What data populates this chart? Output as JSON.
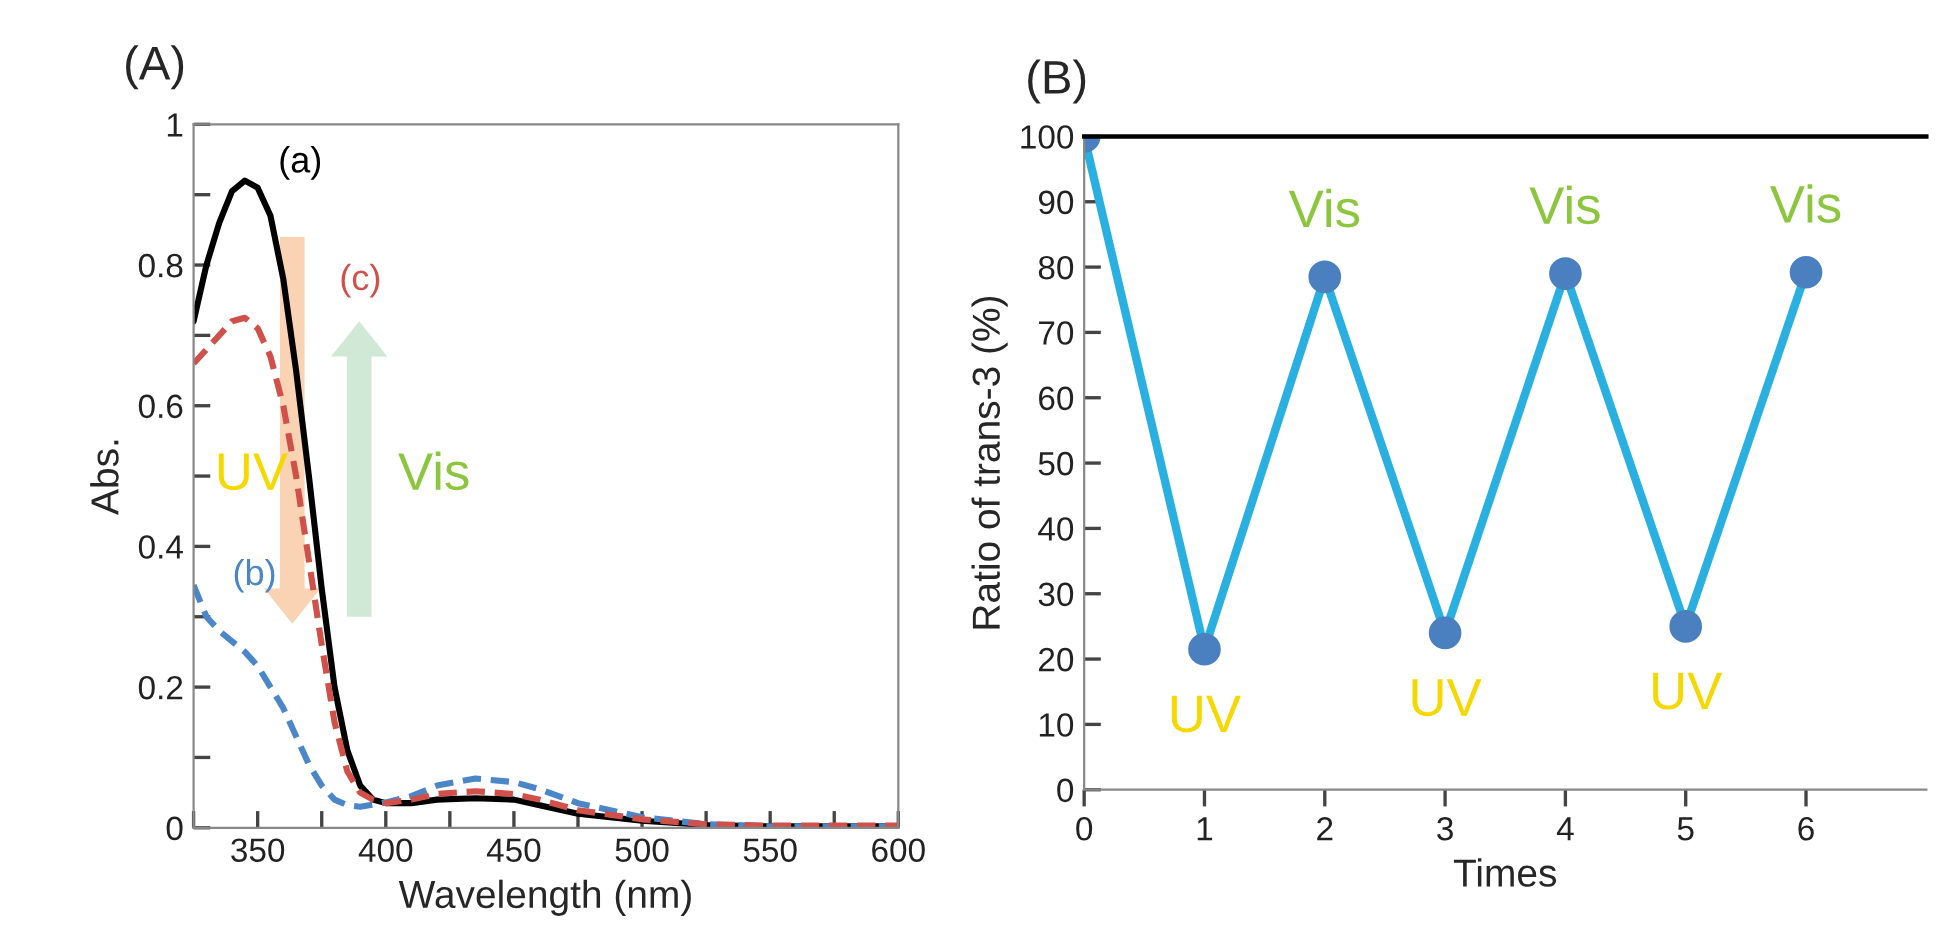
{
  "chart_data": [
    {
      "type": "line",
      "title": "(A)",
      "xlabel": "Wavelength (nm)",
      "ylabel": "Abs.",
      "xlim": [
        325,
        600
      ],
      "xticks": [
        {
          "value": 325,
          "label": null
        },
        350,
        {
          "value": 375,
          "label": null
        },
        400,
        {
          "value": 425,
          "label": null
        },
        450,
        {
          "value": 475,
          "label": null
        },
        500,
        {
          "value": 525,
          "label": null
        },
        550,
        {
          "value": 575,
          "label": null
        },
        600
      ],
      "ylim": [
        0,
        1
      ],
      "yticks": [
        0,
        {
          "value": 0.1,
          "label": null
        },
        0.2,
        {
          "value": 0.3,
          "label": null
        },
        0.4,
        {
          "value": 0.5,
          "label": null
        },
        0.6,
        {
          "value": 0.7,
          "label": null
        },
        0.8,
        {
          "value": 0.9,
          "label": null
        },
        1
      ],
      "x": [
        325,
        330,
        335,
        340,
        345,
        350,
        355,
        360,
        365,
        370,
        375,
        380,
        385,
        390,
        395,
        400,
        410,
        420,
        435,
        450,
        460,
        475,
        500,
        525,
        550,
        600
      ],
      "series": [
        {
          "name": "(a)",
          "color": "#000000",
          "line_style": "solid",
          "values": [
            0.72,
            0.8,
            0.86,
            0.905,
            0.92,
            0.91,
            0.87,
            0.78,
            0.65,
            0.5,
            0.34,
            0.2,
            0.11,
            0.06,
            0.04,
            0.035,
            0.035,
            0.04,
            0.042,
            0.04,
            0.032,
            0.02,
            0.01,
            0.004,
            0.002,
            0.002
          ]
        },
        {
          "name": "(b)",
          "color": "#4a86c8",
          "line_style": "dashed",
          "values": [
            0.345,
            0.3,
            0.28,
            0.265,
            0.25,
            0.23,
            0.2,
            0.17,
            0.13,
            0.09,
            0.06,
            0.04,
            0.032,
            0.03,
            0.033,
            0.036,
            0.045,
            0.06,
            0.07,
            0.065,
            0.055,
            0.035,
            0.015,
            0.005,
            0.002,
            0.002
          ]
        },
        {
          "name": "(c)",
          "color": "#d0504a",
          "line_style": "dashed",
          "values": [
            0.66,
            0.68,
            0.7,
            0.72,
            0.725,
            0.71,
            0.67,
            0.6,
            0.5,
            0.38,
            0.26,
            0.15,
            0.08,
            0.05,
            0.04,
            0.035,
            0.04,
            0.048,
            0.052,
            0.048,
            0.04,
            0.025,
            0.012,
            0.005,
            0.003,
            0.003
          ]
        }
      ],
      "annotations": [
        "UV",
        "Vis"
      ],
      "grid": false,
      "legend": false,
      "marker": "none"
    },
    {
      "type": "line",
      "title": "(B)",
      "xlabel": "Times",
      "ylabel": "Ratio of trans-3 (%)",
      "x": [
        0,
        1,
        2,
        3,
        4,
        5,
        6
      ],
      "xlim": [
        0,
        7
      ],
      "xticks": [
        0,
        1,
        2,
        3,
        4,
        5,
        6
      ],
      "ylim": [
        0,
        100
      ],
      "yticks": [
        0,
        10,
        20,
        30,
        40,
        50,
        60,
        70,
        80,
        90,
        100
      ],
      "series": [
        {
          "color": "#29b0e0",
          "values": [
            100,
            21.5,
            78.5,
            24,
            79,
            25,
            79.2
          ]
        }
      ],
      "annotations": [
        {
          "text": "UV",
          "x": 1,
          "y": 21.5
        },
        {
          "text": "Vis",
          "x": 2,
          "y": 78.5
        },
        {
          "text": "UV",
          "x": 3,
          "y": 24
        },
        {
          "text": "Vis",
          "x": 4,
          "y": 79
        },
        {
          "text": "UV",
          "x": 5,
          "y": 25
        },
        {
          "text": "Vis",
          "x": 6,
          "y": 79.2
        }
      ],
      "grid": false,
      "legend": false,
      "marker": "circle",
      "line_style": "solid"
    }
  ]
}
